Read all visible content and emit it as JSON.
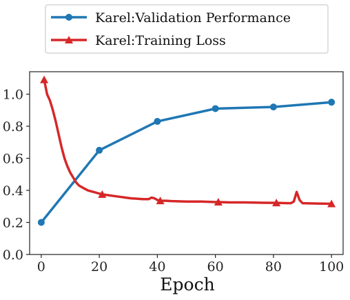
{
  "chart_data": {
    "type": "line",
    "title": "",
    "xlabel": "Epoch",
    "ylabel": "",
    "xlim": [
      -4,
      104
    ],
    "ylim": [
      0,
      1.14
    ],
    "xticks": [
      0,
      20,
      40,
      60,
      80,
      100
    ],
    "yticks": [
      0.0,
      0.2,
      0.4,
      0.6,
      0.8,
      1.0
    ],
    "grid": false,
    "legend_position": "top, outside plot",
    "series": [
      {
        "name": "Karel:Validation Performance",
        "color": "#1f77b4",
        "marker": "circle",
        "x": [
          0,
          20,
          40,
          60,
          80,
          100
        ],
        "y": [
          0.2,
          0.65,
          0.83,
          0.91,
          0.92,
          0.95
        ]
      },
      {
        "name": "Karel:Training Loss",
        "color": "#d62728",
        "marker": "triangle",
        "marker_x": [
          1,
          21,
          41,
          61,
          81,
          100
        ],
        "x": [
          1,
          2,
          3,
          4,
          5,
          6,
          7,
          8,
          9,
          10,
          11,
          12,
          13,
          14,
          15,
          16,
          17,
          18,
          19,
          20,
          21,
          23,
          25,
          27,
          29,
          31,
          33,
          35,
          37,
          38,
          39,
          40,
          41,
          43,
          45,
          50,
          55,
          60,
          61,
          65,
          70,
          75,
          80,
          81,
          85,
          86,
          87,
          88,
          89,
          90,
          95,
          100
        ],
        "y": [
          1.09,
          1.0,
          0.96,
          0.9,
          0.83,
          0.75,
          0.67,
          0.6,
          0.55,
          0.51,
          0.48,
          0.45,
          0.43,
          0.42,
          0.41,
          0.4,
          0.395,
          0.39,
          0.385,
          0.38,
          0.375,
          0.37,
          0.365,
          0.36,
          0.355,
          0.35,
          0.348,
          0.345,
          0.345,
          0.355,
          0.35,
          0.34,
          0.335,
          0.335,
          0.333,
          0.33,
          0.33,
          0.327,
          0.327,
          0.325,
          0.325,
          0.323,
          0.322,
          0.322,
          0.32,
          0.32,
          0.33,
          0.39,
          0.34,
          0.32,
          0.318,
          0.316
        ]
      }
    ]
  }
}
